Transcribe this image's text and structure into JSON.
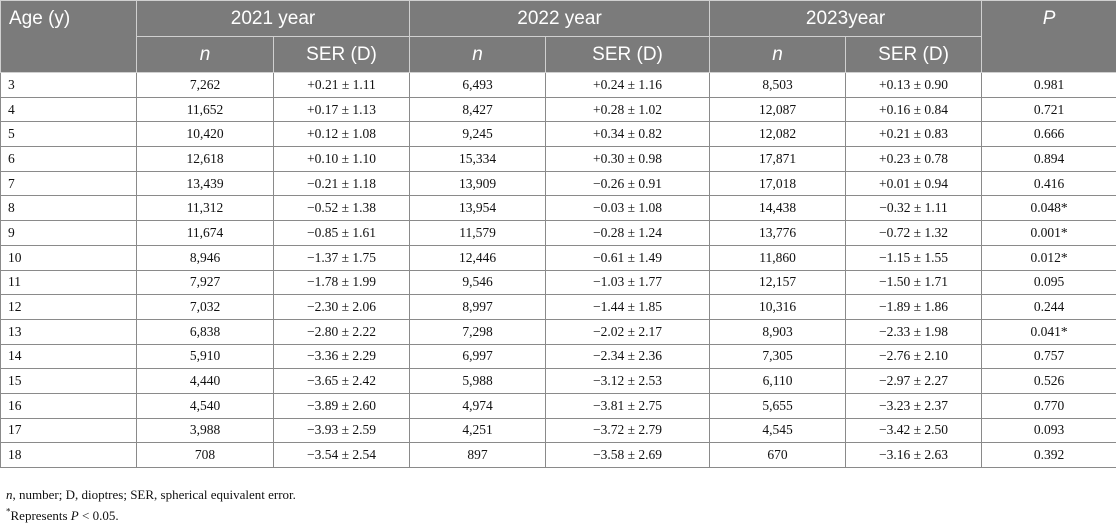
{
  "table": {
    "header": {
      "age_label": "Age (y)",
      "years": [
        "2021 year",
        "2022 year",
        "2023year"
      ],
      "n_label": "n",
      "ser_label": "SER (D)",
      "p_label": "P"
    },
    "rows": [
      {
        "age": "3",
        "n2021": "7,262",
        "ser2021": "+0.21 ± 1.11",
        "n2022": "6,493",
        "ser2022": "+0.24 ± 1.16",
        "n2023": "8,503",
        "ser2023": "+0.13 ± 0.90",
        "p": "0.981"
      },
      {
        "age": "4",
        "n2021": "11,652",
        "ser2021": "+0.17 ± 1.13",
        "n2022": "8,427",
        "ser2022": "+0.28 ± 1.02",
        "n2023": "12,087",
        "ser2023": "+0.16 ± 0.84",
        "p": "0.721"
      },
      {
        "age": "5",
        "n2021": "10,420",
        "ser2021": "+0.12 ± 1.08",
        "n2022": "9,245",
        "ser2022": "+0.34 ± 0.82",
        "n2023": "12,082",
        "ser2023": "+0.21 ± 0.83",
        "p": "0.666"
      },
      {
        "age": "6",
        "n2021": "12,618",
        "ser2021": "+0.10 ± 1.10",
        "n2022": "15,334",
        "ser2022": "+0.30 ± 0.98",
        "n2023": "17,871",
        "ser2023": "+0.23 ± 0.78",
        "p": "0.894"
      },
      {
        "age": "7",
        "n2021": "13,439",
        "ser2021": "−0.21 ± 1.18",
        "n2022": "13,909",
        "ser2022": "−0.26 ± 0.91",
        "n2023": "17,018",
        "ser2023": "+0.01 ± 0.94",
        "p": "0.416"
      },
      {
        "age": "8",
        "n2021": "11,312",
        "ser2021": "−0.52 ± 1.38",
        "n2022": "13,954",
        "ser2022": "−0.03 ± 1.08",
        "n2023": "14,438",
        "ser2023": "−0.32 ± 1.11",
        "p": "0.048*"
      },
      {
        "age": "9",
        "n2021": "11,674",
        "ser2021": "−0.85 ± 1.61",
        "n2022": "11,579",
        "ser2022": "−0.28 ± 1.24",
        "n2023": "13,776",
        "ser2023": "−0.72 ± 1.32",
        "p": "0.001*"
      },
      {
        "age": "10",
        "n2021": "8,946",
        "ser2021": "−1.37 ± 1.75",
        "n2022": "12,446",
        "ser2022": "−0.61 ± 1.49",
        "n2023": "11,860",
        "ser2023": "−1.15 ± 1.55",
        "p": "0.012*"
      },
      {
        "age": "11",
        "n2021": "7,927",
        "ser2021": "−1.78 ± 1.99",
        "n2022": "9,546",
        "ser2022": "−1.03 ± 1.77",
        "n2023": "12,157",
        "ser2023": "−1.50 ± 1.71",
        "p": "0.095"
      },
      {
        "age": "12",
        "n2021": "7,032",
        "ser2021": "−2.30 ± 2.06",
        "n2022": "8,997",
        "ser2022": "−1.44 ± 1.85",
        "n2023": "10,316",
        "ser2023": "−1.89 ± 1.86",
        "p": "0.244"
      },
      {
        "age": "13",
        "n2021": "6,838",
        "ser2021": "−2.80 ± 2.22",
        "n2022": "7,298",
        "ser2022": "−2.02 ± 2.17",
        "n2023": "8,903",
        "ser2023": "−2.33 ± 1.98",
        "p": "0.041*"
      },
      {
        "age": "14",
        "n2021": "5,910",
        "ser2021": "−3.36 ± 2.29",
        "n2022": "6,997",
        "ser2022": "−2.34 ± 2.36",
        "n2023": "7,305",
        "ser2023": "−2.76 ± 2.10",
        "p": "0.757"
      },
      {
        "age": "15",
        "n2021": "4,440",
        "ser2021": "−3.65 ± 2.42",
        "n2022": "5,988",
        "ser2022": "−3.12 ± 2.53",
        "n2023": "6,110",
        "ser2023": "−2.97 ± 2.27",
        "p": "0.526"
      },
      {
        "age": "16",
        "n2021": "4,540",
        "ser2021": "−3.89 ± 2.60",
        "n2022": "4,974",
        "ser2022": "−3.81 ± 2.75",
        "n2023": "5,655",
        "ser2023": "−3.23 ± 2.37",
        "p": "0.770"
      },
      {
        "age": "17",
        "n2021": "3,988",
        "ser2021": "−3.93 ± 2.59",
        "n2022": "4,251",
        "ser2022": "−3.72 ± 2.79",
        "n2023": "4,545",
        "ser2023": "−3.42 ± 2.50",
        "p": "0.093"
      },
      {
        "age": "18",
        "n2021": "708",
        "ser2021": "−3.54 ± 2.54",
        "n2022": "897",
        "ser2022": "−3.58 ± 2.69",
        "n2023": "670",
        "ser2023": "−3.16 ± 2.63",
        "p": "0.392"
      }
    ]
  },
  "footnotes": {
    "abbrev_n": "n",
    "abbrev_rest": ", number; D, dioptres; SER, spherical equivalent error.",
    "star": "*",
    "represents": "Represents ",
    "p": "P",
    "threshold": " < 0.05."
  },
  "colors": {
    "header_bg": "#7b7b7b",
    "header_text": "#ffffff",
    "grid": "#8a8a8a"
  }
}
